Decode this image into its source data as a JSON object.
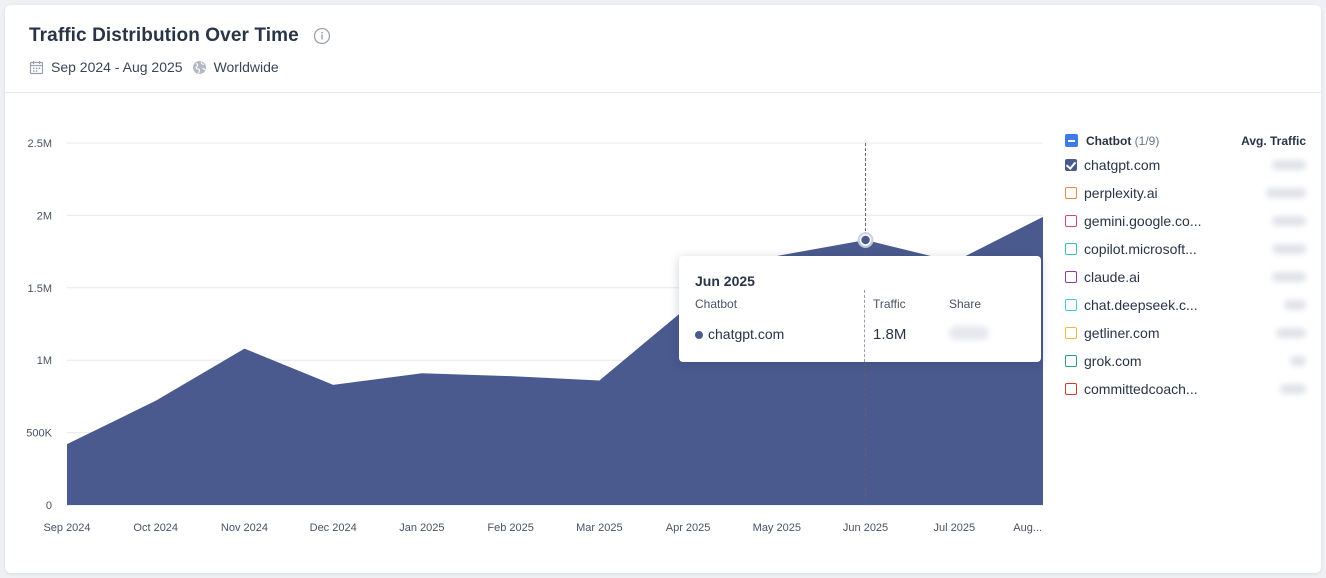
{
  "card": {
    "title": "Traffic Distribution Over Time",
    "date_range": "Sep 2024 - Aug 2025",
    "region": "Worldwide"
  },
  "chart_data": {
    "type": "area",
    "x": [
      "Sep 2024",
      "Oct 2024",
      "Nov 2024",
      "Dec 2024",
      "Jan 2025",
      "Feb 2025",
      "Mar 2025",
      "Apr 2025",
      "May 2025",
      "Jun 2025",
      "Jul 2025",
      "Aug..."
    ],
    "series": [
      {
        "name": "chatgpt.com",
        "values": [
          420000,
          720000,
          1080000,
          830000,
          910000,
          890000,
          860000,
          1370000,
          1720000,
          1830000,
          1680000,
          1990000
        ],
        "color": "#4a5a8f"
      }
    ],
    "ylim": [
      0,
      2500000
    ],
    "yticks": [
      "0",
      "500K",
      "1M",
      "1.5M",
      "2M",
      "2.5M"
    ],
    "ytick_values": [
      0,
      500000,
      1000000,
      1500000,
      2000000,
      2500000
    ],
    "grid": true,
    "highlight_index": 9
  },
  "tooltip": {
    "month": "Jun 2025",
    "col_chatbot": "Chatbot",
    "col_traffic": "Traffic",
    "col_share": "Share",
    "row_name": "chatgpt.com",
    "row_traffic": "1.8M"
  },
  "legend": {
    "header": "Chatbot",
    "count": "(1/9)",
    "avg_header": "Avg. Traffic",
    "items": [
      {
        "name": "chatgpt.com",
        "color": "#4a5a8f",
        "checked": true
      },
      {
        "name": "perplexity.ai",
        "color": "#f0883e",
        "checked": false
      },
      {
        "name": "gemini.google.co...",
        "color": "#d6457a",
        "checked": false
      },
      {
        "name": "copilot.microsoft...",
        "color": "#3cc4a0",
        "checked": false
      },
      {
        "name": "claude.ai",
        "color": "#8a3aa8",
        "checked": false
      },
      {
        "name": "chat.deepseek.c...",
        "color": "#45c6e6",
        "checked": false
      },
      {
        "name": "getliner.com",
        "color": "#f2b63a",
        "checked": false
      },
      {
        "name": "grok.com",
        "color": "#2a9d8f",
        "checked": false
      },
      {
        "name": "committedcoach...",
        "color": "#c6402c",
        "checked": false
      }
    ]
  }
}
